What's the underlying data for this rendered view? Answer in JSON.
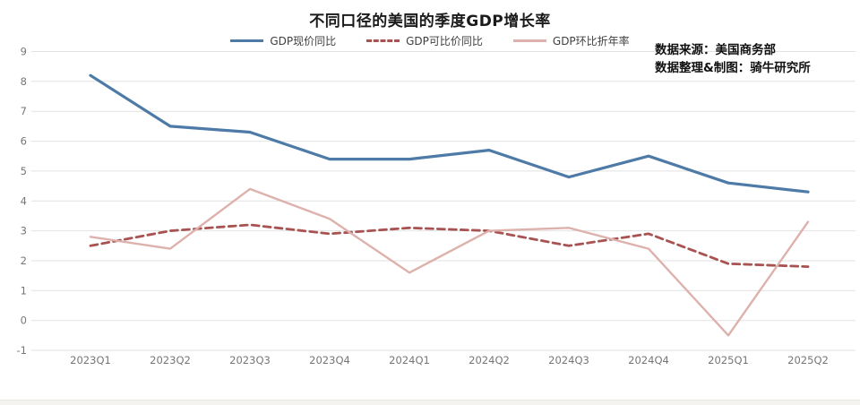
{
  "page": {
    "background": "#ffffff",
    "source": {
      "line1": "数据来源：美国商务部",
      "line2": "数据整理&制图：骑牛研究所"
    }
  },
  "chart_data": {
    "type": "line",
    "title": "不同口径的美国的季度GDP增长率",
    "categories": [
      "2023Q1",
      "2023Q2",
      "2023Q3",
      "2023Q4",
      "2024Q1",
      "2024Q2",
      "2024Q3",
      "2024Q4",
      "2025Q1",
      "2025Q2"
    ],
    "series": [
      {
        "name": "GDP现价同比",
        "color": "#4d7aa6",
        "dash": "solid",
        "width": 3.2,
        "values": [
          8.2,
          6.5,
          6.3,
          5.4,
          5.4,
          5.7,
          4.8,
          5.5,
          4.6,
          4.3
        ]
      },
      {
        "name": "GDP可比价同比",
        "color": "#a85252",
        "dash": "dashed",
        "width": 2.8,
        "values": [
          2.5,
          3.0,
          3.2,
          2.9,
          3.1,
          3.0,
          2.5,
          2.9,
          1.9,
          1.8
        ]
      },
      {
        "name": "GDP环比折年率",
        "color": "#ddb1ac",
        "dash": "solid",
        "width": 2.4,
        "values": [
          2.8,
          2.4,
          4.4,
          3.4,
          1.6,
          3.0,
          3.1,
          2.4,
          -0.5,
          3.3
        ]
      }
    ],
    "xlabel": "",
    "ylabel": "",
    "ylim": [
      -1,
      9
    ],
    "ytick_interval": 1,
    "yticks": [
      9,
      8,
      7,
      6,
      5,
      4,
      3,
      2,
      1,
      0,
      -1
    ],
    "grid": "horizontal",
    "grid_color": "#e2e2e2",
    "tick_color": "#767676",
    "legend_position": "top-center"
  }
}
